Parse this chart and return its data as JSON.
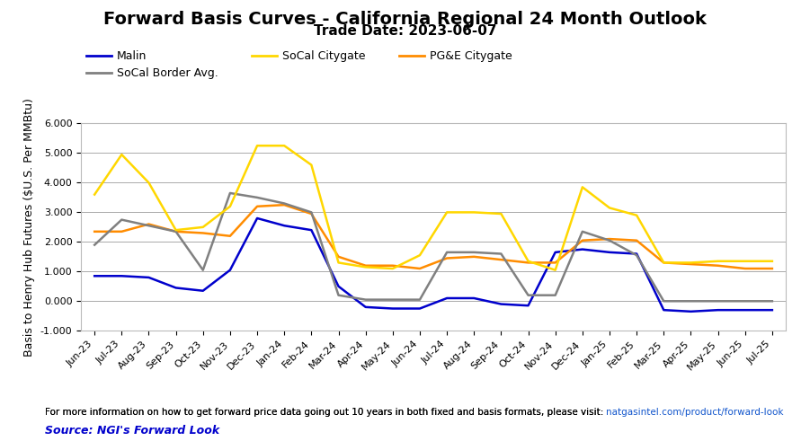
{
  "title": "Forward Basis Curves - California Regional 24 Month Outlook",
  "subtitle": "Trade Date: 2023-06-07",
  "ylabel": "Basis to Henry Hub Futures ($U.S. Per MMBtu)",
  "footnote_plain": "For more information on how to get forward price data going out 10 years in both fixed and basis formats, please visit: ",
  "footnote_link": "natgasintel.com/product/forward-look",
  "source": "Source: NGI's Forward Look",
  "x_labels": [
    "Jun-23",
    "Jul-23",
    "Aug-23",
    "Sep-23",
    "Oct-23",
    "Nov-23",
    "Dec-23",
    "Jan-24",
    "Feb-24",
    "Mar-24",
    "Apr-24",
    "May-24",
    "Jun-24",
    "Jul-24",
    "Aug-24",
    "Sep-24",
    "Oct-24",
    "Nov-24",
    "Dec-24",
    "Jan-25",
    "Feb-25",
    "Mar-25",
    "Apr-25",
    "May-25",
    "Jun-25",
    "Jul-25"
  ],
  "malin": [
    0.85,
    0.85,
    0.8,
    0.45,
    0.35,
    1.05,
    2.8,
    2.55,
    2.4,
    0.5,
    -0.2,
    -0.25,
    -0.25,
    0.1,
    0.1,
    -0.1,
    -0.15,
    1.65,
    1.75,
    1.65,
    1.6,
    -0.3,
    -0.35,
    -0.3,
    -0.3,
    -0.3
  ],
  "pge_citygate": [
    2.35,
    2.35,
    2.6,
    2.35,
    2.3,
    2.2,
    3.2,
    3.25,
    2.95,
    1.5,
    1.2,
    1.2,
    1.1,
    1.45,
    1.5,
    1.4,
    1.3,
    1.3,
    2.05,
    2.1,
    2.05,
    1.3,
    1.25,
    1.2,
    1.1,
    1.1
  ],
  "socal_border": [
    1.9,
    2.75,
    2.55,
    2.35,
    1.05,
    3.65,
    3.5,
    3.3,
    3.0,
    0.2,
    0.05,
    0.05,
    0.05,
    1.65,
    1.65,
    1.6,
    0.2,
    0.2,
    2.35,
    2.05,
    1.55,
    0.0,
    0.0,
    0.0,
    0.0,
    0.0
  ],
  "socal_citygate": [
    3.6,
    4.95,
    4.0,
    2.4,
    2.5,
    3.2,
    5.25,
    5.25,
    4.6,
    1.3,
    1.15,
    1.1,
    1.55,
    3.0,
    3.0,
    2.95,
    1.35,
    1.05,
    3.85,
    3.15,
    2.9,
    1.3,
    1.3,
    1.35,
    1.35,
    1.35
  ],
  "colors": {
    "malin": "#0000CC",
    "pge_citygate": "#FF8C00",
    "socal_border": "#808080",
    "socal_citygate": "#FFD700"
  },
  "ylim": [
    -1.0,
    6.0
  ],
  "yticks": [
    -1.0,
    0.0,
    1.0,
    2.0,
    3.0,
    4.0,
    5.0,
    6.0
  ],
  "ytick_labels": [
    "-1.000",
    "0.000",
    "1.000",
    "2.000",
    "3.000",
    "4.000",
    "5.000",
    "6.000"
  ],
  "bg_color": "#FFFFFF",
  "grid_color": "#AAAAAA",
  "title_fontsize": 14,
  "subtitle_fontsize": 11,
  "axis_label_fontsize": 9,
  "tick_fontsize": 8,
  "legend_fontsize": 9,
  "footnote_fontsize": 7.5,
  "source_fontsize": 9
}
